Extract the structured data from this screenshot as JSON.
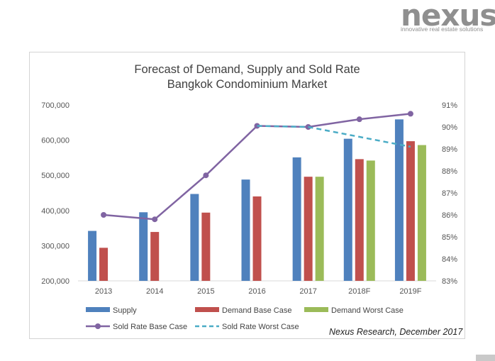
{
  "brand": {
    "name": "nexus",
    "tagline": "innovative real estate solutions",
    "color": "#8f8f8f"
  },
  "chart_data": {
    "type": "bar",
    "title": "Forecast of Demand, Supply and Sold Rate",
    "subtitle": "Bangkok Condominium Market",
    "categories": [
      "2013",
      "2014",
      "2015",
      "2016",
      "2017",
      "2018F",
      "2019F"
    ],
    "y_left": {
      "range": [
        200000,
        700000
      ],
      "ticks": [
        "200,000",
        "300,000",
        "400,000",
        "500,000",
        "600,000",
        "700,000"
      ],
      "tick_values": [
        200000,
        300000,
        400000,
        500000,
        600000,
        700000
      ]
    },
    "y_right": {
      "range": [
        83,
        91
      ],
      "ticks": [
        "83%",
        "84%",
        "85%",
        "86%",
        "87%",
        "88%",
        "89%",
        "90%",
        "91%"
      ],
      "tick_values": [
        83,
        84,
        85,
        86,
        87,
        88,
        89,
        90,
        91
      ]
    },
    "bar_series": [
      {
        "name": "Supply",
        "color": "#4f81bd",
        "values": [
          342000,
          395000,
          447000,
          488000,
          551000,
          604000,
          659000
        ]
      },
      {
        "name": "Demand Base Case",
        "color": "#c0504d",
        "values": [
          294000,
          339000,
          394000,
          440000,
          496000,
          546000,
          597000
        ]
      },
      {
        "name": "Demand Worst Case",
        "color": "#9bbb59",
        "values": [
          null,
          null,
          null,
          null,
          496000,
          542000,
          586000
        ]
      }
    ],
    "line_series": [
      {
        "name": "Sold Rate Base Case",
        "color": "#8064a2",
        "style": "solid-markers",
        "values": [
          86.0,
          85.8,
          87.8,
          90.05,
          90.0,
          90.35,
          90.6
        ]
      },
      {
        "name": "Sold Rate Worst Case",
        "color": "#4bacc6",
        "style": "dashed",
        "values": [
          null,
          null,
          null,
          90.05,
          90.0,
          null,
          89.1
        ]
      }
    ],
    "legend": {
      "placement": "bottom",
      "items": [
        "Supply",
        "Demand Base Case",
        "Demand Worst Case",
        "Sold Rate Base Case",
        "Sold Rate Worst Case"
      ]
    },
    "source_note": "Nexus Research, December 2017"
  }
}
